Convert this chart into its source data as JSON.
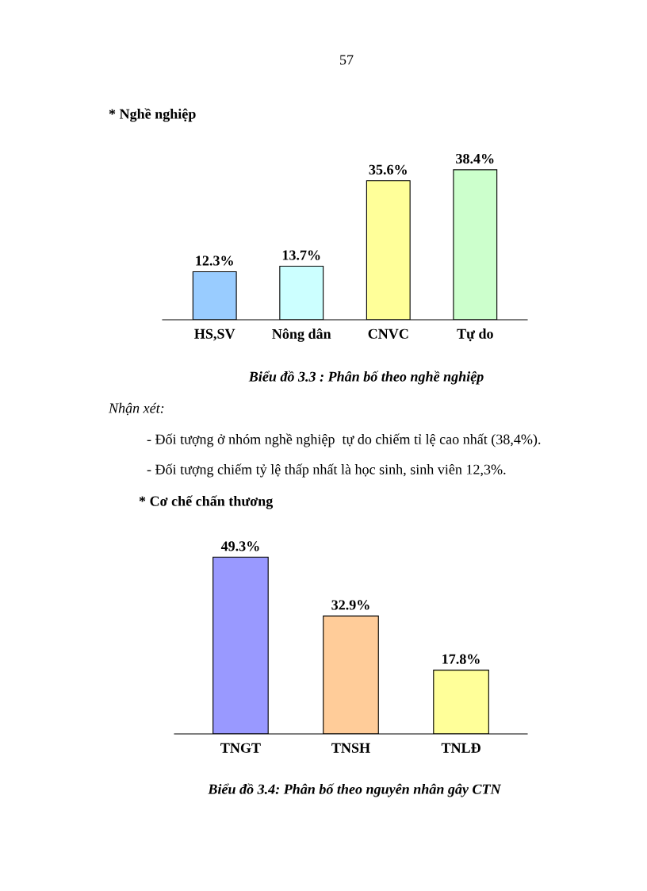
{
  "chart_data": [
    {
      "type": "bar",
      "title": "* Nghề nghiệp",
      "categories": [
        "HS,SV",
        "Nông dân",
        "CNVC",
        "Tự do"
      ],
      "values": [
        12.3,
        13.7,
        35.6,
        38.4
      ],
      "value_labels": [
        "12.3%",
        "13.7%",
        "35.6%",
        "38.4%"
      ],
      "colors": [
        "#99ccff",
        "#ccffff",
        "#ffff99",
        "#ccffcc"
      ],
      "grid": false,
      "legend": false,
      "annotations": [
        "57",
        "Biểu đồ 3.3 : Phân bố theo nghề nghiệp",
        "Nhận xét:",
        "- Đối tượng ở nhóm nghề nghiệp  tự do chiếm tỉ lệ cao nhất (38,4%).",
        "- Đối tượng chiếm tỷ lệ thấp nhất là học sinh, sinh viên 12,3%."
      ]
    },
    {
      "type": "bar",
      "title": "* Cơ chế chấn thương",
      "categories": [
        "TNGT",
        "TNSH",
        "TNLĐ"
      ],
      "values": [
        49.3,
        32.9,
        17.8
      ],
      "value_labels": [
        "49.3%",
        "32.9%",
        "17.8%"
      ],
      "colors": [
        "#9999ff",
        "#ffcc99",
        "#ffff99"
      ],
      "grid": false,
      "legend": false,
      "annotations": [
        "Biểu đồ 3.4: Phân bố theo nguyên nhân gây CTN"
      ]
    }
  ]
}
